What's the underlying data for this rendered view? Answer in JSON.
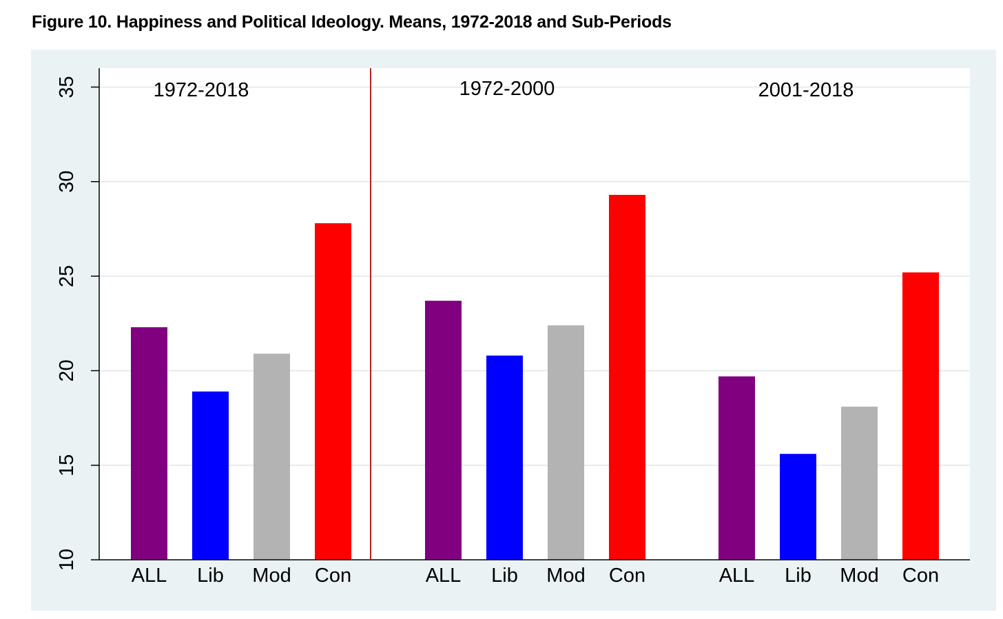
{
  "title": "Figure 10. Happiness and Political Ideology.  Means, 1972-2018 and Sub-Periods",
  "colors": {
    "ALL": "#800080",
    "Lib": "#0000ff",
    "Mod": "#b3b3b3",
    "Con": "#ff0000",
    "divider": "#b22222",
    "panel_bg": "#eaf2f3",
    "plot_bg": "#ffffff",
    "grid": "#e5ecee"
  },
  "chart_data": {
    "type": "bar",
    "title": "Figure 10. Happiness and Political Ideology.  Means, 1972-2018 and Sub-Periods",
    "xlabel": "",
    "ylabel": "",
    "ylim": [
      10,
      36
    ],
    "yticks": [
      "10",
      "15",
      "20",
      "25",
      "30",
      "35"
    ],
    "ytick_values": [
      10,
      15,
      20,
      25,
      30,
      35
    ],
    "categories": [
      "ALL",
      "Lib",
      "Mod",
      "Con"
    ],
    "grid": true,
    "groups": [
      {
        "label": "1972-2018",
        "values": [
          22.3,
          18.9,
          20.9,
          27.8
        ]
      },
      {
        "label": "1972-2000",
        "values": [
          23.7,
          20.8,
          22.4,
          29.3
        ]
      },
      {
        "label": "2001-2018",
        "values": [
          19.7,
          15.6,
          18.1,
          25.2
        ]
      }
    ]
  }
}
